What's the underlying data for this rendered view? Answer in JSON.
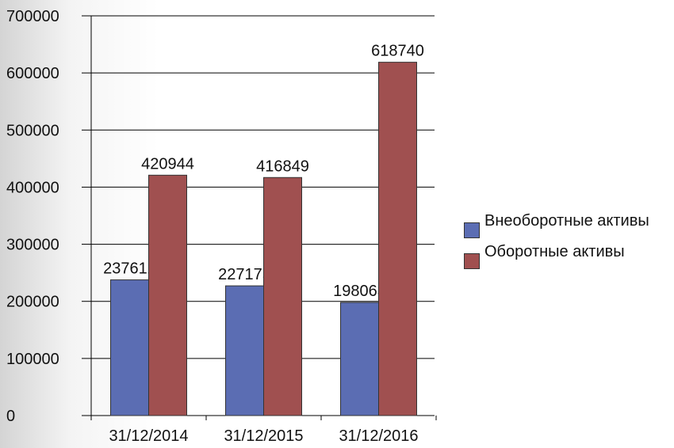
{
  "chart_data": {
    "type": "bar",
    "categories": [
      "31/12/2014",
      "31/12/2015",
      "31/12/2016"
    ],
    "series": [
      {
        "name": "Внеоборотные активы",
        "color": "#5b6db3",
        "values": [
          237612,
          227175,
          198063
        ]
      },
      {
        "name": "Оборотные активы",
        "color": "#a05050",
        "values": [
          420944,
          416849,
          618740
        ]
      }
    ],
    "ylim": [
      0,
      700000
    ],
    "yticks": [
      0,
      100000,
      200000,
      300000,
      400000,
      500000,
      600000,
      700000
    ],
    "grid": true,
    "legend": "right"
  }
}
